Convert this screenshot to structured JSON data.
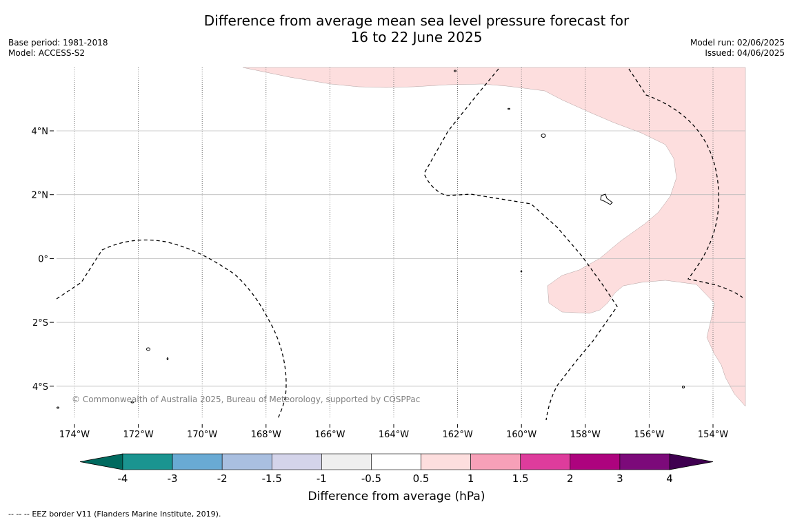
{
  "title": {
    "line1": "Difference from average mean sea level pressure forecast for",
    "line2": "16 to 22 June 2025"
  },
  "meta_left": {
    "base_period": "Base period: 1981-2018",
    "model": "Model: ACCESS-S2"
  },
  "meta_right": {
    "model_run": "Model run: 02/06/2025",
    "issued": "Issued: 04/06/2025"
  },
  "map": {
    "lon_labels": [
      "174°W",
      "172°W",
      "170°W",
      "168°W",
      "166°W",
      "164°W",
      "162°W",
      "160°W",
      "158°W",
      "156°W",
      "154°W"
    ],
    "lat_labels": [
      "4°N",
      "2°N",
      "0°",
      "2°S",
      "4°S"
    ],
    "copyright": "© Commonwealth of Australia 2025, Bureau of Meteorology, supported by COSPPac",
    "anomaly_region_color": "#fddede",
    "anomaly_region_class": "0.5 to 1"
  },
  "colorbar": {
    "label": "Difference from average (hPa)",
    "tick_labels": [
      "-4",
      "-3",
      "-2",
      "-1.5",
      "-1",
      "-0.5",
      "0.5",
      "1",
      "1.5",
      "2",
      "3",
      "4"
    ],
    "under_color": "#006a5f",
    "over_color": "#3f0050",
    "colors": [
      "#1a9490",
      "#69aad4",
      "#a9bfe0",
      "#d4d4ea",
      "#efefef",
      "#ffffff",
      "#fddede",
      "#f7a0b8",
      "#de3c9c",
      "#ad037e",
      "#7c0a7a"
    ]
  },
  "footer": {
    "legend_symbol": "--  --  --",
    "legend_text": "EEZ border V11 (Flanders Marine Institute, 2019)."
  }
}
